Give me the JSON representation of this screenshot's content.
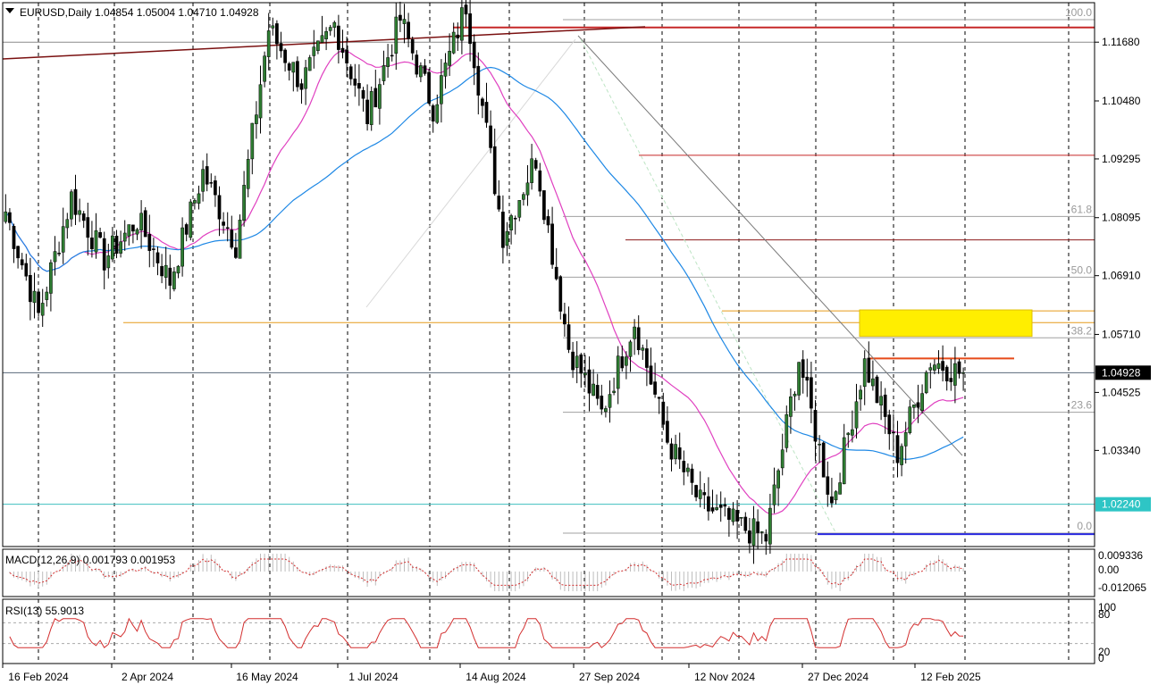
{
  "header": {
    "symbol_line": "EURUSD,Daily  1.04854 1.05004 1.04710 1.04928"
  },
  "indicators": {
    "macd_label": "MACD(12,26,9) 0.001793 0.001953",
    "rsi_label": "RSI(13) 55.9013"
  },
  "colors": {
    "bull": "#2e7d32",
    "bear": "#000000",
    "ma_fast": "#e040c0",
    "ma_slow": "#1e88e5",
    "grid": "#000000",
    "fib": "#a0a0a0",
    "resistance": "#c62828",
    "support": "#2a2ae0",
    "orange_level": "#e69a1a",
    "zone": "#ffee00",
    "rsi": "#d32f2f",
    "last_price_bg": "#000000",
    "marked_level_bg": "#2ec5c5"
  },
  "chart_data": {
    "type": "candlestick",
    "symbol": "EURUSD",
    "timeframe": "Daily",
    "last_price": 1.04928,
    "ohlc_last": {
      "open": 1.04854,
      "high": 1.05004,
      "low": 1.0471,
      "close": 1.04928
    },
    "y_axis_ticks": [
      1.1168,
      1.1048,
      1.09295,
      1.08095,
      1.0691,
      1.0571,
      1.04525,
      1.0334
    ],
    "y_axis_ticks_text": [
      "1.11680",
      "1.10480",
      "1.09295",
      "1.08095",
      "1.06910",
      "1.05710",
      "1.04525",
      "1.03340"
    ],
    "last_price_text": "1.04928",
    "marked_level": 1.0224,
    "marked_level_text": "1.02240",
    "ylim": [
      1.0155,
      1.1238
    ],
    "x_axis_labels": [
      "16 Feb 2024",
      "2 Apr 2024",
      "16 May 2024",
      "1 Jul 2024",
      "14 Aug 2024",
      "27 Sep 2024",
      "12 Nov 2024",
      "27 Dec 2024",
      "12 Feb 2025"
    ],
    "fibonacci": [
      {
        "label": "100.0",
        "price": 1.1214
      },
      {
        "label": "61.8",
        "price": 1.0812
      },
      {
        "label": "50.0",
        "price": 1.0688
      },
      {
        "label": "38.2",
        "price": 1.0564
      },
      {
        "label": "23.6",
        "price": 1.0412
      },
      {
        "label": "0.0",
        "price": 1.0165
      }
    ],
    "levels": [
      {
        "name": "top-resistance",
        "price": 1.1198
      },
      {
        "name": "mid-resistance",
        "price": 1.0937
      },
      {
        "name": "lower-resistance",
        "price": 1.0764
      },
      {
        "name": "orange-support",
        "price": 1.0595
      },
      {
        "name": "orange-level-2",
        "price": 1.0619
      },
      {
        "name": "recent-high",
        "price": 1.0522
      },
      {
        "name": "bottom-support",
        "price": 1.0163
      }
    ],
    "key_prices": [
      1.0822,
      1.061,
      1.0852,
      1.0725,
      1.0805,
      1.068,
      1.0902,
      1.0755,
      1.1195,
      1.1085,
      1.1205,
      1.1015,
      1.1215,
      1.1035,
      1.1245,
      1.0775,
      1.0932,
      1.0545,
      1.041,
      1.0598,
      1.0355,
      1.0225,
      1.0185,
      1.0155,
      1.0522,
      1.0225,
      1.0512,
      1.0328,
      1.0518,
      1.049
    ],
    "rsi_ylim": [
      0,
      100
    ],
    "rsi_levels": [
      30,
      70
    ],
    "rsi_ticks": [
      "100",
      "80",
      "20",
      "0"
    ],
    "macd_ticks": [
      "0.009336",
      "0.00",
      "-0.012065"
    ]
  }
}
